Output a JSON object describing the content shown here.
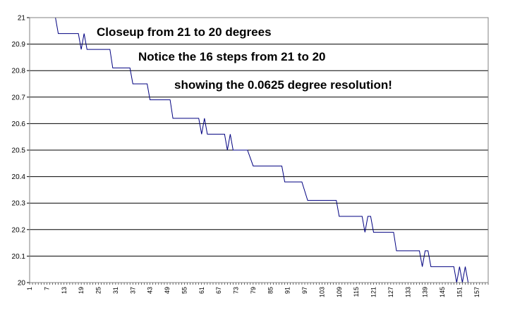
{
  "chart_data": {
    "type": "line",
    "title": "",
    "xlabel": "",
    "ylabel": "",
    "xlim": [
      1,
      161
    ],
    "ylim": [
      20,
      21
    ],
    "y_ticks": [
      "20",
      "20.1",
      "20.2",
      "20.3",
      "20.4",
      "20.5",
      "20.6",
      "20.7",
      "20.8",
      "20.9",
      "21"
    ],
    "x_ticks": [
      "1",
      "7",
      "13",
      "19",
      "25",
      "31",
      "37",
      "43",
      "49",
      "55",
      "61",
      "67",
      "73",
      "79",
      "85",
      "91",
      "97",
      "103",
      "109",
      "115",
      "121",
      "127",
      "133",
      "139",
      "145",
      "151",
      "157"
    ],
    "grid": "horizontal",
    "legend": "none",
    "annotations": [
      "Closeup from 21 to 20 degrees",
      "Notice the 16 steps from 21 to 20",
      "showing the 0.0625 degree resolution!"
    ],
    "series": [
      {
        "color": "#000080",
        "points": [
          [
            1,
            21
          ],
          [
            10,
            21
          ],
          [
            11,
            20.94
          ],
          [
            18,
            20.94
          ],
          [
            19,
            20.88
          ],
          [
            20,
            20.94
          ],
          [
            21,
            20.88
          ],
          [
            29,
            20.88
          ],
          [
            30,
            20.81
          ],
          [
            36,
            20.81
          ],
          [
            37,
            20.75
          ],
          [
            42,
            20.75
          ],
          [
            43,
            20.69
          ],
          [
            50,
            20.69
          ],
          [
            51,
            20.62
          ],
          [
            60,
            20.62
          ],
          [
            61,
            20.56
          ],
          [
            62,
            20.62
          ],
          [
            63,
            20.56
          ],
          [
            69,
            20.56
          ],
          [
            70,
            20.5
          ],
          [
            71,
            20.56
          ],
          [
            72,
            20.5
          ],
          [
            77,
            20.5
          ],
          [
            79,
            20.44
          ],
          [
            89,
            20.44
          ],
          [
            90,
            20.38
          ],
          [
            96,
            20.38
          ],
          [
            98,
            20.31
          ],
          [
            108,
            20.31
          ],
          [
            109,
            20.25
          ],
          [
            117,
            20.25
          ],
          [
            118,
            20.19
          ],
          [
            119,
            20.25
          ],
          [
            120,
            20.25
          ],
          [
            121,
            20.19
          ],
          [
            128,
            20.19
          ],
          [
            129,
            20.12
          ],
          [
            137,
            20.12
          ],
          [
            138,
            20.06
          ],
          [
            139,
            20.12
          ],
          [
            140,
            20.12
          ],
          [
            141,
            20.06
          ],
          [
            149,
            20.06
          ],
          [
            150,
            20
          ],
          [
            151,
            20.06
          ],
          [
            152,
            20
          ],
          [
            153,
            20.06
          ],
          [
            154,
            20
          ]
        ]
      }
    ]
  }
}
